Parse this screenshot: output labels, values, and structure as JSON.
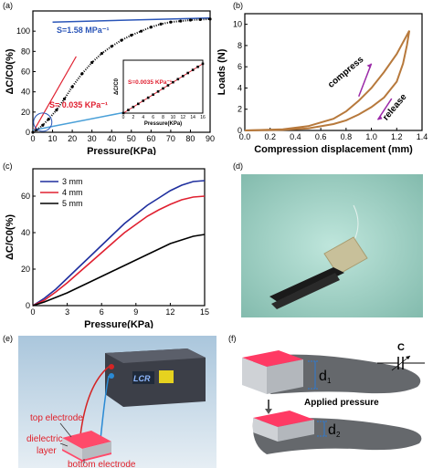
{
  "panels": {
    "a": "(a)",
    "b": "(b)",
    "c": "(c)",
    "d": "(d)",
    "e": "(e)",
    "f": "(f)"
  },
  "chart_data": [
    {
      "id": "a",
      "type": "line",
      "xlabel": "Pressure(KPa)",
      "ylabel": "ΔC/C0(%)",
      "xlim": [
        0,
        90
      ],
      "ylim": [
        0,
        120
      ],
      "xticks": [
        0,
        10,
        20,
        30,
        40,
        50,
        60,
        70,
        80,
        90
      ],
      "yticks": [
        0,
        20,
        40,
        60,
        80,
        100
      ],
      "series": [
        {
          "x": [
            0,
            2,
            5,
            8,
            12,
            16,
            20,
            25,
            30,
            35,
            40,
            45,
            50,
            55,
            60,
            65,
            70,
            75,
            80,
            85,
            90
          ],
          "y": [
            0,
            2.5,
            7,
            13,
            22,
            33,
            45,
            58,
            69,
            78,
            85,
            91,
            96,
            100,
            104,
            107,
            109,
            110,
            111,
            111.5,
            112
          ]
        }
      ],
      "fits": [
        {
          "label": "S=1.58 MPa⁻¹",
          "x": [
            10,
            90
          ],
          "y": [
            109,
            113
          ],
          "color": "#2a55b8"
        },
        {
          "label": "S= 0.035 KPa⁻¹",
          "x": [
            0,
            22
          ],
          "y": [
            0,
            75
          ],
          "color": "#e02030"
        },
        {
          "x": [
            0,
            50
          ],
          "y": [
            2,
            21
          ],
          "color": "#4aa0d8"
        }
      ],
      "annotations": [
        "S=1.58 MPa⁻¹",
        "S= 0.035 KPa⁻¹"
      ],
      "inset": {
        "xlabel": "Pressure(KPa)",
        "ylabel": "ΔC/C0",
        "xlim": [
          0,
          16
        ],
        "ylim": [
          0,
          0.06
        ],
        "xticks": [
          0,
          2,
          4,
          6,
          8,
          10,
          12,
          14,
          16
        ],
        "annotation": "S=0.0035 KPa⁻¹",
        "x": [
          0,
          1,
          2,
          3,
          4,
          5,
          6,
          7,
          8,
          9,
          10,
          11,
          12,
          13,
          14,
          15,
          16
        ],
        "y": [
          0,
          0.0035,
          0.007,
          0.0105,
          0.014,
          0.0175,
          0.021,
          0.0245,
          0.028,
          0.0315,
          0.035,
          0.0385,
          0.042,
          0.0455,
          0.049,
          0.0525,
          0.056
        ]
      }
    },
    {
      "id": "b",
      "type": "line",
      "xlabel": "Compression displacement (mm)",
      "ylabel": "Loads (N)",
      "xlim": [
        0,
        1.4
      ],
      "ylim": [
        0,
        11
      ],
      "xticks": [
        0.0,
        0.2,
        0.4,
        0.6,
        0.8,
        1.0,
        1.2,
        1.4
      ],
      "yticks": [
        0,
        2,
        4,
        6,
        8,
        10
      ],
      "series": [
        {
          "name": "compress",
          "x": [
            0,
            0.3,
            0.5,
            0.7,
            0.8,
            0.9,
            1.0,
            1.1,
            1.2,
            1.25,
            1.3
          ],
          "y": [
            0,
            0.1,
            0.4,
            1.1,
            1.8,
            2.8,
            4.0,
            5.5,
            7.2,
            8.3,
            9.4
          ]
        },
        {
          "name": "release",
          "x": [
            1.3,
            1.28,
            1.25,
            1.2,
            1.1,
            1.0,
            0.9,
            0.8,
            0.7,
            0.5,
            0.3,
            0.0
          ],
          "y": [
            9.4,
            8.0,
            6.3,
            4.6,
            3.1,
            2.2,
            1.5,
            0.95,
            0.6,
            0.2,
            0.05,
            0
          ]
        }
      ],
      "labels": {
        "compress": "compress",
        "release": "release"
      },
      "colors": {
        "curve": "#b7793c",
        "arrow": "#9b2aa8"
      }
    },
    {
      "id": "c",
      "type": "line",
      "xlabel": "Pressure(KPa)",
      "ylabel": "ΔC/C0(%)",
      "xlim": [
        0,
        15
      ],
      "ylim": [
        0,
        75
      ],
      "xticks": [
        0,
        3,
        6,
        9,
        12,
        15
      ],
      "yticks": [
        0,
        20,
        40,
        60
      ],
      "series": [
        {
          "name": "3 mm",
          "color": "#1f2f9e",
          "x": [
            0,
            1,
            2,
            3,
            4,
            5,
            6,
            7,
            8,
            9,
            10,
            11,
            12,
            13,
            14,
            15
          ],
          "y": [
            0,
            4,
            9,
            15,
            21,
            27,
            33,
            39,
            45,
            50,
            55,
            59,
            63,
            66,
            68,
            68.5
          ]
        },
        {
          "name": "4 mm",
          "color": "#e02030",
          "x": [
            0,
            1,
            2,
            3,
            4,
            5,
            6,
            7,
            8,
            9,
            10,
            11,
            12,
            13,
            14,
            15
          ],
          "y": [
            0,
            3,
            7.5,
            12.5,
            18,
            23.5,
            29,
            34.5,
            40,
            44.5,
            49,
            52.5,
            55.5,
            58,
            59.5,
            60
          ]
        },
        {
          "name": "5 mm",
          "color": "#000000",
          "x": [
            0,
            1,
            2,
            3,
            4,
            5,
            6,
            7,
            8,
            9,
            10,
            11,
            12,
            13,
            14,
            15
          ],
          "y": [
            0,
            2,
            4.5,
            7,
            10,
            13,
            16,
            19,
            22,
            25,
            28,
            31,
            34,
            36,
            38,
            39
          ]
        }
      ]
    }
  ],
  "e": {
    "device_label": "LCR",
    "labels": {
      "top": "top electrode",
      "dielectric1": "dielectric",
      "dielectric2": "layer",
      "bottom": "bottom electrode"
    }
  },
  "f": {
    "c_label": "C",
    "d1": "d",
    "d1_sub": "1",
    "d2": "d",
    "d2_sub": "2",
    "applied": "Applied pressure"
  }
}
